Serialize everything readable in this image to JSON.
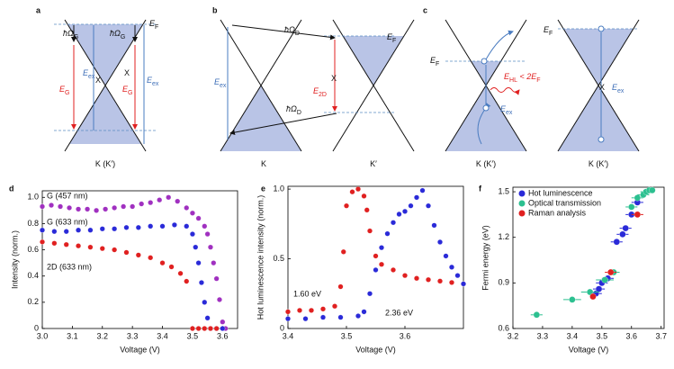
{
  "diagrams": [
    {
      "letter": "a",
      "labels": [
        [
          "ħΩ",
          "G"
        ],
        [
          "ħΩ",
          "G"
        ],
        [
          "E",
          "F"
        ],
        [
          "E",
          "ex"
        ],
        [
          "E",
          "ex"
        ],
        [
          "E",
          "G"
        ],
        [
          "E",
          "G"
        ],
        [
          "X"
        ],
        [
          "X"
        ],
        [
          "K (K′)"
        ]
      ]
    },
    {
      "letter": "b",
      "labels": [
        [
          "ħΩ",
          "D"
        ],
        [
          "E",
          "F"
        ],
        [
          "E",
          "ex"
        ],
        [
          "E",
          "2D"
        ],
        [
          "X"
        ],
        [
          "ħΩ",
          "D"
        ],
        [
          "K"
        ],
        [
          "K′"
        ]
      ]
    },
    {
      "letter": "c",
      "labels": [
        [
          "E",
          "F"
        ],
        [
          "E",
          "HL",
          " < 2E",
          "F"
        ],
        [
          "E",
          "ex"
        ],
        [
          "E",
          "F"
        ],
        [
          "X"
        ],
        [
          "E",
          "ex"
        ],
        [
          "K (K′)"
        ],
        [
          "K (K′)"
        ]
      ]
    }
  ],
  "chart_data": [
    {
      "type": "scatter",
      "panel": "d",
      "x_label": "Voltage (V)",
      "y_label": "Intensity (norm.)",
      "xlim": [
        3.0,
        3.65
      ],
      "xticks": [
        {
          "value": 3,
          "label": "3.0"
        },
        3.1,
        3.2,
        3.3,
        3.4,
        3.5,
        3.6
      ],
      "ylim": [
        0,
        1.05
      ],
      "yticks": [
        0,
        0.2,
        0.4,
        0.6,
        0.8,
        {
          "value": 1,
          "label": "1.0"
        }
      ],
      "series": [
        {
          "name": "G (457 nm)",
          "color": "#a030c0",
          "x": [
            3.0,
            3.03,
            3.06,
            3.09,
            3.12,
            3.15,
            3.18,
            3.21,
            3.24,
            3.27,
            3.3,
            3.33,
            3.36,
            3.39,
            3.42,
            3.45,
            3.48,
            3.5,
            3.52,
            3.54,
            3.55,
            3.56,
            3.57,
            3.58,
            3.59,
            3.6,
            3.61
          ],
          "values": [
            0.93,
            0.94,
            0.93,
            0.92,
            0.91,
            0.91,
            0.9,
            0.91,
            0.92,
            0.93,
            0.93,
            0.95,
            0.96,
            0.98,
            1.0,
            0.97,
            0.92,
            0.88,
            0.84,
            0.78,
            0.72,
            0.62,
            0.5,
            0.38,
            0.22,
            0.05,
            0
          ]
        },
        {
          "name": "G (633 nm)",
          "color": "#2a2ad8",
          "x": [
            3.0,
            3.04,
            3.08,
            3.12,
            3.16,
            3.2,
            3.24,
            3.28,
            3.32,
            3.36,
            3.4,
            3.44,
            3.48,
            3.5,
            3.51,
            3.52,
            3.53,
            3.54,
            3.55,
            3.56,
            3.58,
            3.6
          ],
          "values": [
            0.75,
            0.74,
            0.74,
            0.75,
            0.75,
            0.76,
            0.76,
            0.77,
            0.77,
            0.78,
            0.78,
            0.79,
            0.78,
            0.72,
            0.62,
            0.5,
            0.35,
            0.2,
            0.08,
            0,
            0,
            0
          ]
        },
        {
          "name": "2D (633 nm)",
          "color": "#e02020",
          "x": [
            3.0,
            3.04,
            3.08,
            3.12,
            3.16,
            3.2,
            3.24,
            3.28,
            3.32,
            3.36,
            3.4,
            3.43,
            3.46,
            3.48,
            3.5,
            3.52,
            3.54,
            3.56,
            3.58
          ],
          "values": [
            0.66,
            0.65,
            0.64,
            0.63,
            0.62,
            0.61,
            0.6,
            0.58,
            0.56,
            0.54,
            0.5,
            0.47,
            0.42,
            0.36,
            0,
            0,
            0,
            0,
            0
          ]
        }
      ]
    },
    {
      "type": "scatter",
      "panel": "e",
      "x_label": "Voltage (V)",
      "y_label": "Hot luminescence intensity (norm.)",
      "xlim": [
        3.4,
        3.7
      ],
      "xticks": [
        3.4,
        3.5,
        3.6
      ],
      "ylim": [
        0,
        1.02
      ],
      "yticks": [
        0,
        0.5,
        {
          "value": 1,
          "label": "1.0"
        }
      ],
      "annotations": [
        {
          "text": "1.60 eV",
          "color": "#e02020"
        },
        {
          "text": "2.36 eV",
          "color": "#2a2ad8"
        }
      ],
      "series": [
        {
          "color": "#e02020",
          "x": [
            3.4,
            3.42,
            3.44,
            3.46,
            3.48,
            3.49,
            3.495,
            3.5,
            3.51,
            3.52,
            3.53,
            3.535,
            3.54,
            3.55,
            3.56,
            3.58,
            3.6,
            3.62,
            3.64,
            3.66,
            3.68,
            3.7
          ],
          "values": [
            0.12,
            0.13,
            0.13,
            0.14,
            0.16,
            0.3,
            0.55,
            0.88,
            0.98,
            1.0,
            0.95,
            0.85,
            0.7,
            0.52,
            0.46,
            0.42,
            0.38,
            0.36,
            0.35,
            0.34,
            0.33,
            0.32
          ]
        },
        {
          "color": "#2a2ad8",
          "x": [
            3.4,
            3.43,
            3.46,
            3.49,
            3.52,
            3.53,
            3.54,
            3.55,
            3.56,
            3.57,
            3.58,
            3.59,
            3.6,
            3.61,
            3.62,
            3.63,
            3.64,
            3.65,
            3.66,
            3.67,
            3.68,
            3.69,
            3.7
          ],
          "values": [
            0.07,
            0.07,
            0.08,
            0.08,
            0.09,
            0.12,
            0.25,
            0.42,
            0.58,
            0.68,
            0.76,
            0.82,
            0.84,
            0.88,
            0.94,
            0.99,
            0.88,
            0.74,
            0.62,
            0.52,
            0.44,
            0.38,
            0.32
          ]
        }
      ]
    },
    {
      "type": "scatter",
      "panel": "f",
      "x_label": "Voltage (V)",
      "y_label": "Fermi energy (eV)",
      "xlim": [
        3.2,
        3.71
      ],
      "xticks": [
        3.2,
        3.3,
        3.4,
        3.5,
        3.6,
        3.7
      ],
      "ylim": [
        0.6,
        1.53
      ],
      "yticks": [
        0.6,
        0.9,
        1.2,
        1.5
      ],
      "legend": "upper left",
      "series": [
        {
          "name": "Hot luminescence",
          "color": "#2a2ad8",
          "x": [
            3.48,
            3.49,
            3.5,
            3.52,
            3.55,
            3.57,
            3.58,
            3.6,
            3.62
          ],
          "xerr": [
            0.02,
            0.02,
            0.02,
            0.02,
            0.02,
            0.02,
            0.02,
            0.02,
            0.02
          ],
          "values": [
            0.83,
            0.86,
            0.9,
            0.93,
            1.17,
            1.22,
            1.26,
            1.35,
            1.43
          ]
        },
        {
          "name": "Optical transmission",
          "color": "#2cc090",
          "x": [
            3.28,
            3.4,
            3.46,
            3.51,
            3.54,
            3.6,
            3.62,
            3.64,
            3.65,
            3.66,
            3.67
          ],
          "xerr": [
            0.02,
            0.03,
            0.03,
            0.03,
            0.02,
            0.02,
            0.02,
            0.02,
            0.02,
            0.02,
            0.01
          ],
          "values": [
            0.69,
            0.79,
            0.84,
            0.92,
            0.97,
            1.4,
            1.46,
            1.48,
            1.5,
            1.51,
            1.51
          ]
        },
        {
          "name": "Raman analysis",
          "color": "#e02020",
          "x": [
            3.47,
            3.53,
            3.62
          ],
          "xerr": [
            0.01,
            0.02,
            0.02
          ],
          "values": [
            0.81,
            0.97,
            1.35
          ]
        }
      ]
    }
  ]
}
